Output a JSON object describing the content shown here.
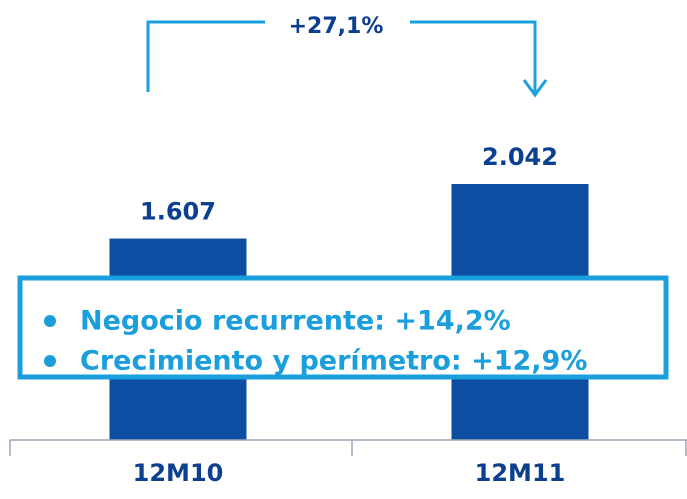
{
  "chart_data": {
    "type": "bar",
    "categories": [
      "12M10",
      "12M11"
    ],
    "values": [
      1607,
      2042
    ],
    "value_labels": [
      "1.607",
      "2.042"
    ],
    "color": "#0b4ea2",
    "annotation": "+27,1%",
    "bullets": [
      "Negocio recurrente: +14,2%",
      "Crecimiento y perímetro: +12,9%"
    ]
  }
}
